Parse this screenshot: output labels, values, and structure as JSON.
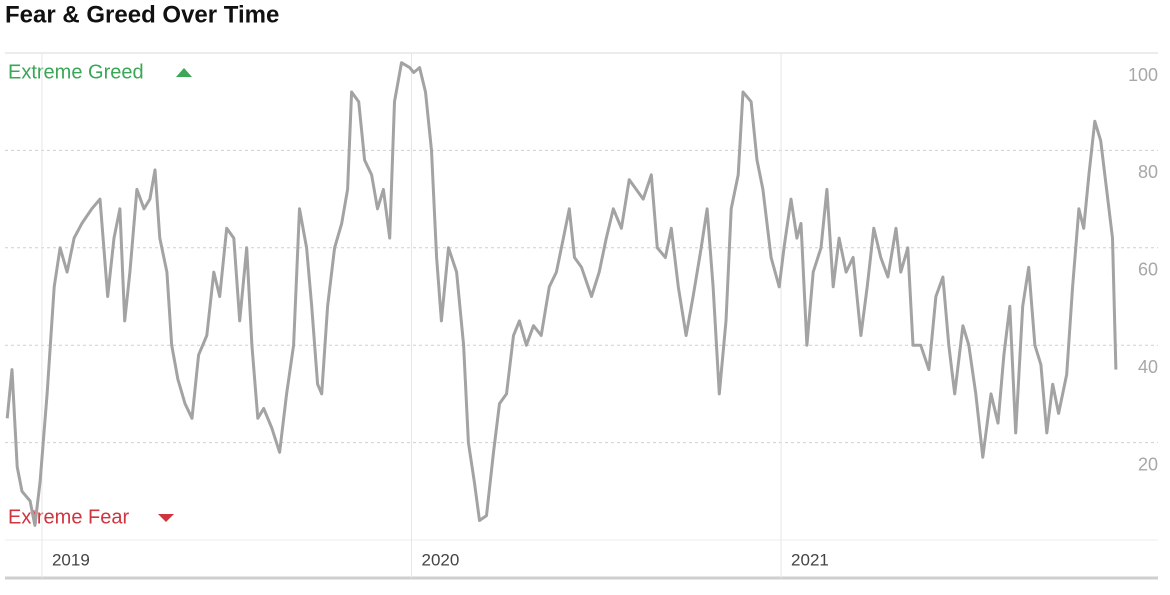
{
  "chart_data": {
    "type": "line",
    "title": "Fear & Greed Over Time",
    "annotations": {
      "top": "Extreme Greed",
      "bottom": "Extreme Fear"
    },
    "color": "#a3a3a3",
    "xlim": [
      2018.9,
      2022.02
    ],
    "xticks": [
      2019,
      2020,
      2021
    ],
    "ylim": [
      0,
      100
    ],
    "yticks": [
      20,
      40,
      60,
      80,
      100
    ],
    "grid": true,
    "x": [
      2018.906,
      2018.919,
      2018.933,
      2018.946,
      2018.968,
      2018.981,
      2018.995,
      2019.014,
      2019.033,
      2019.049,
      2019.068,
      2019.087,
      2019.108,
      2019.135,
      2019.157,
      2019.178,
      2019.195,
      2019.211,
      2019.224,
      2019.238,
      2019.257,
      2019.276,
      2019.292,
      2019.306,
      2019.319,
      2019.338,
      2019.351,
      2019.368,
      2019.387,
      2019.406,
      2019.424,
      2019.446,
      2019.465,
      2019.481,
      2019.5,
      2019.519,
      2019.535,
      2019.554,
      2019.568,
      2019.584,
      2019.6,
      2019.622,
      2019.643,
      2019.662,
      2019.681,
      2019.697,
      2019.716,
      2019.73,
      2019.746,
      2019.757,
      2019.773,
      2019.792,
      2019.811,
      2019.827,
      2019.838,
      2019.857,
      2019.873,
      2019.892,
      2019.908,
      2019.924,
      2019.941,
      2019.954,
      2019.973,
      2019.995,
      2020.006,
      2020.022,
      2020.038,
      2020.054,
      2020.068,
      2020.081,
      2020.1,
      2020.122,
      2020.141,
      2020.154,
      2020.17,
      2020.184,
      2020.203,
      2020.222,
      2020.238,
      2020.257,
      2020.276,
      2020.292,
      2020.311,
      2020.33,
      2020.351,
      2020.373,
      2020.392,
      2020.411,
      2020.427,
      2020.441,
      2020.46,
      2020.487,
      2020.508,
      2020.527,
      2020.546,
      2020.568,
      2020.589,
      2020.608,
      2020.627,
      2020.649,
      2020.665,
      2020.687,
      2020.703,
      2020.722,
      2020.743,
      2020.762,
      2020.784,
      2020.8,
      2020.816,
      2020.833,
      2020.851,
      2020.865,
      2020.884,
      2020.897,
      2020.919,
      2020.935,
      2020.951,
      2020.973,
      2020.995,
      2021.008,
      2021.027,
      2021.043,
      2021.054,
      2021.07,
      2021.087,
      2021.108,
      2021.124,
      2021.141,
      2021.157,
      2021.176,
      2021.195,
      2021.216,
      2021.233,
      2021.251,
      2021.27,
      2021.289,
      2021.311,
      2021.324,
      2021.343,
      2021.357,
      2021.378,
      2021.4,
      2021.419,
      2021.438,
      2021.454,
      2021.47,
      2021.492,
      2021.508,
      2021.527,
      2021.546,
      2021.568,
      2021.587,
      2021.603,
      2021.619,
      2021.635,
      2021.654,
      2021.67,
      2021.687,
      2021.703,
      2021.719,
      2021.735,
      2021.751,
      2021.773,
      2021.789,
      2021.806,
      2021.819,
      2021.833,
      2021.849,
      2021.865,
      2021.881,
      2021.897,
      2021.906
    ],
    "values": [
      25,
      35,
      15,
      10,
      8,
      3,
      12,
      30,
      52,
      60,
      55,
      62,
      65,
      68,
      70,
      50,
      62,
      68,
      45,
      55,
      72,
      68,
      70,
      76,
      62,
      55,
      40,
      33,
      28,
      25,
      38,
      42,
      55,
      50,
      64,
      62,
      45,
      60,
      40,
      25,
      27,
      23,
      18,
      30,
      40,
      68,
      60,
      48,
      32,
      30,
      48,
      60,
      65,
      72,
      92,
      90,
      78,
      75,
      68,
      72,
      62,
      90,
      98,
      97,
      96,
      97,
      92,
      80,
      58,
      45,
      60,
      55,
      40,
      20,
      12,
      4,
      5,
      18,
      28,
      30,
      42,
      45,
      40,
      44,
      42,
      52,
      55,
      62,
      68,
      58,
      56,
      50,
      55,
      62,
      68,
      64,
      74,
      72,
      70,
      75,
      60,
      58,
      64,
      52,
      42,
      50,
      60,
      68,
      52,
      30,
      45,
      68,
      75,
      92,
      90,
      78,
      72,
      58,
      52,
      60,
      70,
      62,
      65,
      40,
      55,
      60,
      72,
      52,
      62,
      55,
      58,
      42,
      52,
      64,
      58,
      54,
      64,
      55,
      60,
      40,
      40,
      35,
      50,
      54,
      40,
      30,
      44,
      40,
      30,
      17,
      30,
      24,
      38,
      48,
      22,
      48,
      56,
      40,
      36,
      22,
      32,
      26,
      34,
      52,
      68,
      64,
      75,
      86,
      82,
      72,
      62,
      35
    ]
  }
}
